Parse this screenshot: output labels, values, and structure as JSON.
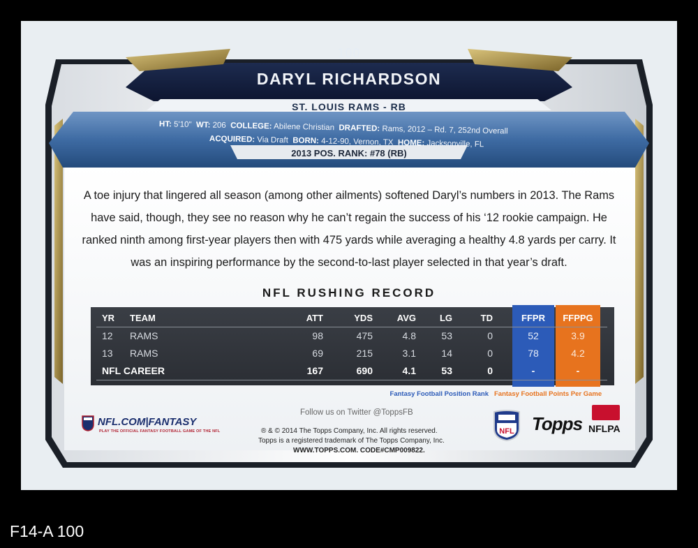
{
  "header": {
    "card_number": "100",
    "player_name": "DARYL RICHARDSON",
    "team_position": "ST. LOUIS RAMS - RB",
    "ht_label": "HT:",
    "ht": "5'10\"",
    "wt_label": "WT:",
    "wt": "206",
    "college_label": "COLLEGE:",
    "college": "Abilene Christian",
    "drafted_label": "DRAFTED:",
    "drafted": "Rams, 2012 – Rd. 7, 252nd Overall",
    "acquired_label": "ACQUIRED:",
    "acquired": "Via Draft",
    "born_label": "BORN:",
    "born": "4-12-90, Vernon, TX",
    "home_label": "HOME:",
    "home": "Jacksonville, FL",
    "pos_rank": "2013 POS. RANK: #78 (RB)"
  },
  "bio": {
    "line1": "A toe injury that lingered all season (among other ailments) softened Daryl’s numbers in 2013. The Rams",
    "line2": "have said, though, they see no reason why he can’t regain the success of his ‘12 rookie campaign. He",
    "line3": "ranked ninth among first-year players then with 475 yards while averaging a healthy 4.8 yards per carry. It",
    "line4": "was an inspiring performance by the second-to-last player selected in that year’s draft."
  },
  "record": {
    "title": "NFL RUSHING RECORD",
    "headers": {
      "yr": "YR",
      "team": "TEAM",
      "att": "ATT",
      "yds": "YDS",
      "avg": "AVG",
      "lg": "LG",
      "td": "TD",
      "ffpr": "FFPR",
      "ffppg": "FFPPG"
    },
    "rows": [
      {
        "yr": "12",
        "team": "RAMS",
        "att": "98",
        "yds": "475",
        "avg": "4.8",
        "lg": "53",
        "td": "0",
        "ffpr": "52",
        "ffppg": "3.9"
      },
      {
        "yr": "13",
        "team": "RAMS",
        "att": "69",
        "yds": "215",
        "avg": "3.1",
        "lg": "14",
        "td": "0",
        "ffpr": "78",
        "ffppg": "4.2"
      }
    ],
    "career": {
      "label": "NFL CAREER",
      "att": "167",
      "yds": "690",
      "avg": "4.1",
      "lg": "53",
      "td": "0",
      "ffpr": "-",
      "ffppg": "-"
    },
    "legend_ffpr": "Fantasy Football Position Rank",
    "legend_ffppg": "Fantasy Football Points Per Game"
  },
  "footer": {
    "nflcom": "NFL.COM|FANTASY",
    "nflcom_tagline": "PLAY THE OFFICIAL FANTASY FOOTBALL GAME OF THE NFL",
    "twitter": "Follow us on Twitter @ToppsFB",
    "legal1": "® & © 2014 The Topps Company, Inc. All rights reserved.",
    "legal2": "Topps is a registered trademark of The Topps Company, Inc.",
    "legal3": "WWW.TOPPS.COM. CODE#CMP009822.",
    "nfl_logo": "NFL",
    "topps_logo": "Topps",
    "nflpa_logo": "NFLPA"
  },
  "catalog_code": "F14-A 100",
  "colors": {
    "ffpr": "#2c5bb8",
    "ffppg": "#e7731e",
    "header_blue": "#2f5d92"
  }
}
